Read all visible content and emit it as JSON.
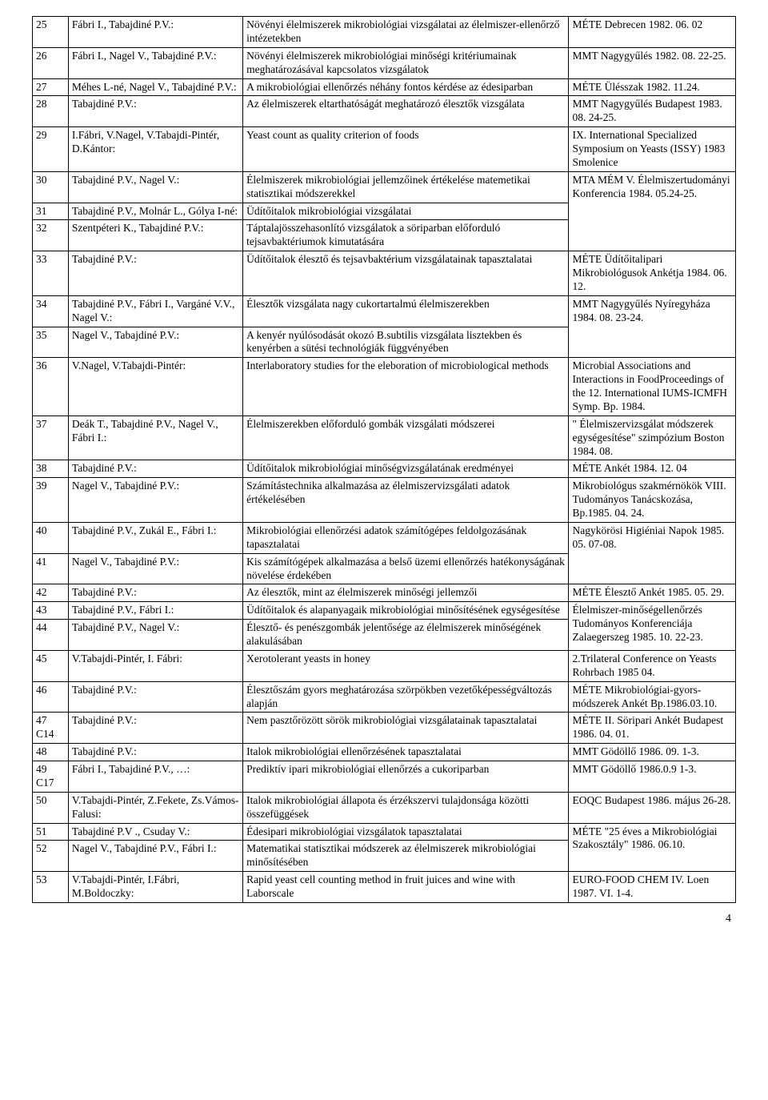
{
  "page_number": "4",
  "rows": [
    {
      "n": "25",
      "a": "Fábri I., Tabajdiné P.V.:",
      "t": "Növényi élelmiszerek mikrobiológiai vizsgálatai az élelmiszer-ellenőrző intézetekben",
      "v": "MÉTE Debrecen 1982. 06. 02"
    },
    {
      "n": "26",
      "a": "Fábri I., Nagel V., Tabajdiné P.V.:",
      "t": "Növényi élelmiszerek mikrobiológiai minőségi kritériumainak meghatározásával kapcsolatos vizsgálatok",
      "v": "MMT Nagygyűlés 1982. 08. 22-25."
    },
    {
      "n": "27",
      "a": "Méhes L-né, Nagel V., Tabajdiné P.V.:",
      "t": "A mikrobiológiai ellenőrzés néhány fontos kérdése az édesiparban",
      "v": "MÉTE Ülésszak 1982. 11.24."
    },
    {
      "n": "28",
      "a": "Tabajdiné P.V.:",
      "t": "Az élelmiszerek eltarthatóságát meghatározó élesztők vizsgálata",
      "v": "MMT Nagygyűlés Budapest 1983. 08. 24-25."
    },
    {
      "n": "29",
      "a": "I.Fábri, V.Nagel, V.Tabajdi-Pintér, D.Kántor:",
      "t": "Yeast count as quality criterion of foods",
      "v": "IX. International Specialized Symposium on Yeasts (ISSY) 1983 Smolenice"
    },
    {
      "n": "30",
      "a": "Tabajdiné P.V., Nagel V.:",
      "t": "Élelmiszerek mikrobiológiai jellemzőinek értékelése matemetikai statisztikai módszerekkel",
      "v": "MTA MÉM V. Élelmiszertudományi Konferencia 1984. 05.24-25."
    },
    {
      "n": "31",
      "a": "Tabajdiné P.V., Molnár L., Gólya I-né:",
      "t": "Üdítőitalok mikrobiológiai vizsgálatai",
      "v": ""
    },
    {
      "n": "32",
      "a": "Szentpéteri K., Tabajdiné P.V.:",
      "t": "Táptalajösszehasonlító vizsgálatok a söriparban előforduló tejsavbaktériumok kimutatására",
      "v": ""
    },
    {
      "n": "33",
      "a": "Tabajdiné P.V.:",
      "t": "Üdítőitalok élesztő és tejsavbaktérium vizsgálatainak tapasztalatai",
      "v": "MÉTE Üdítőitalipari Mikrobiológusok Ankétja 1984. 06. 12."
    },
    {
      "n": "34",
      "a": "Tabajdiné P.V., Fábri I., Vargáné V.V., Nagel V.:",
      "t": "Élesztők vizsgálata nagy cukortartalmú élelmiszerekben",
      "v": "MMT Nagygyűlés Nyíregyháza 1984. 08. 23-24."
    },
    {
      "n": "35",
      "a": "Nagel V., Tabajdiné P.V.:",
      "t": "A kenyér nyúlósodását okozó B.subtilis vizsgálata lisztekben és kenyérben a sütési technológiák függvényében",
      "v": ""
    },
    {
      "n": "36",
      "a": "V.Nagel, V.Tabajdi-Pintér:",
      "t": "Interlaboratory studies for the eleboration of microbiological methods",
      "v": "Microbial Associations and Interactions in FoodProceedings of the 12. International IUMS-ICMFH Symp. Bp. 1984."
    },
    {
      "n": "37",
      "a": "Deák T., Tabajdiné P.V., Nagel V., Fábri I.:",
      "t": "Élelmiszerekben előforduló gombák vizsgálati módszerei",
      "v": "\" Élelmiszervizsgálat módszerek egységesítése\" szimpózium Boston 1984. 08."
    },
    {
      "n": "38",
      "a": "Tabajdiné P.V.:",
      "t": "Üdítőitalok mikrobiológiai minőségvizsgálatának eredményei",
      "v": "MÉTE Ankét 1984. 12. 04"
    },
    {
      "n": "39",
      "a": "Nagel V., Tabajdiné P.V.:",
      "t": "Számítástechnika alkalmazása az élelmiszervizsgálati adatok értékelésében",
      "v": "Mikrobiológus szakmérnökök VIII. Tudományos Tanácskozása, Bp.1985. 04. 24."
    },
    {
      "n": "40",
      "a": "Tabajdiné P.V., Zukál E., Fábri I.:",
      "t": "Mikrobiológiai ellenőrzési adatok számítógépes feldolgozásának tapasztalatai",
      "v": "Nagykörösi Higiéniai Napok 1985. 05. 07-08."
    },
    {
      "n": "41",
      "a": "Nagel V., Tabajdiné P.V.:",
      "t": "Kis számítógépek alkalmazása a belső üzemi ellenőrzés hatékonyságának növelése érdekében",
      "v": ""
    },
    {
      "n": "42",
      "a": "Tabajdiné P.V.:",
      "t": "Az élesztők, mint az élelmiszerek minőségi jellemzői",
      "v": "MÉTE Élesztő Ankét 1985. 05. 29."
    },
    {
      "n": "43",
      "a": "Tabajdiné P.V., Fábri I.:",
      "t": "Üdítőitalok és alapanyagaik mikrobiológiai minősítésének egységesítése",
      "v": "Élelmiszer-minőségellenőrzés Tudományos Konferenciája Zalaegerszeg 1985. 10. 22-23."
    },
    {
      "n": "44",
      "a": "Tabajdiné P.V., Nagel V.:",
      "t": "Élesztő- és penészgombák jelentősége az élelmiszerek minőségének alakulásában",
      "v": ""
    },
    {
      "n": "45",
      "a": "V.Tabajdi-Pintér, I. Fábri:",
      "t": "Xerotolerant yeasts in honey",
      "v": "2.Trilateral Conference on Yeasts Rohrbach 1985 04."
    },
    {
      "n": "46",
      "a": "Tabajdiné P.V.:",
      "t": "Élesztőszám gyors meghatározása szörpökben vezetőképességváltozás alapján",
      "v": "MÉTE Mikrobiológiai-gyors-módszerek Ankét Bp.1986.03.10."
    },
    {
      "n": "47\nC14",
      "a": "Tabajdiné P.V.:",
      "t": "Nem pasztőrözött sörök mikrobiológiai vizsgálatainak tapasztalatai",
      "v": "MÉTE II. Söripari Ankét Budapest 1986. 04. 01."
    },
    {
      "n": "48",
      "a": "Tabajdiné P.V.:",
      "t": "Italok mikrobiológiai ellenőrzésének tapasztalatai",
      "v": "MMT Gödöllő 1986. 09. 1-3."
    },
    {
      "n": "49\nC17",
      "a": "Fábri I., Tabajdiné P.V., …:",
      "t": "Prediktív ipari mikrobiológiai ellenőrzés a cukoriparban",
      "v": "MMT Gödöllő 1986.0.9 1-3."
    },
    {
      "n": "50",
      "a": "V.Tabajdi-Pintér, Z.Fekete, Zs.Vámos-Falusi:",
      "t": "Italok mikrobiológiai állapota és érzékszervi tulajdonsága közötti összefüggések",
      "v": "EOQC Budapest 1986. május 26-28."
    },
    {
      "n": "51",
      "a": "Tabajdiné P.V ., Csuday V.:",
      "t": "Édesipari mikrobiológiai vizsgálatok tapasztalatai",
      "v": "MÉTE \"25 éves a Mikrobiológiai Szakosztály\" 1986. 06.10."
    },
    {
      "n": "52",
      "a": "Nagel V., Tabajdiné P.V., Fábri I.:",
      "t": "Matematikai statisztikai módszerek az élelmiszerek mikrobiológiai minősítésében",
      "v": ""
    },
    {
      "n": "53",
      "a": "V.Tabajdi-Pintér, I.Fábri, M.Boldoczky:",
      "t": "Rapid yeast cell counting method in fruit juices and wine with Laborscale",
      "v": "EURO-FOOD CHEM IV. Loen 1987. VI. 1-4."
    }
  ],
  "venue_rowspans": {
    "29": 1,
    "30": 3,
    "34": 2,
    "40": 2,
    "43": 2,
    "51": 2
  }
}
